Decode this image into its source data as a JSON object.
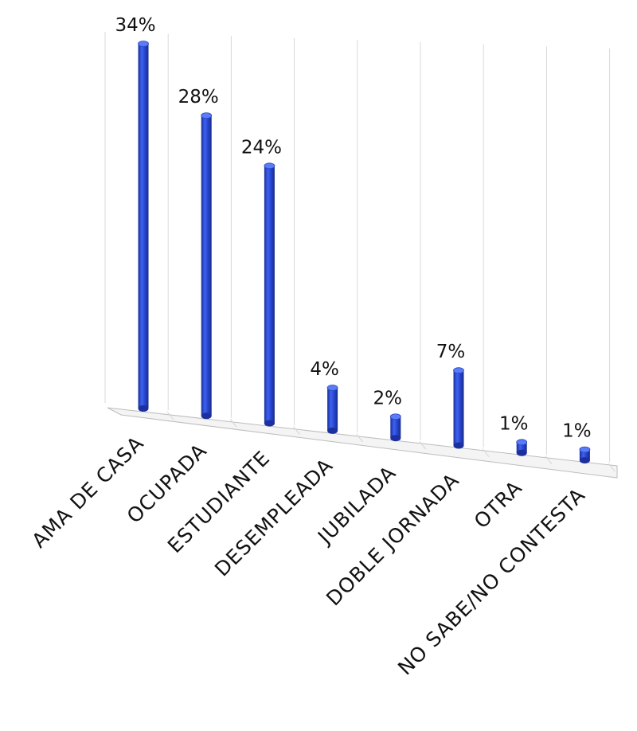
{
  "chart_data": {
    "type": "bar",
    "categories": [
      "AMA DE CASA",
      "OCUPADA",
      "ESTUDIANTE",
      "DESEMPLEADA",
      "JUBILADA",
      "DOBLE JORNADA",
      "OTRA",
      "NO SABE/NO CONTESTA"
    ],
    "values": [
      34,
      28,
      24,
      4,
      2,
      7,
      1,
      1
    ],
    "value_labels": [
      "34%",
      "28%",
      "24%",
      "4%",
      "2%",
      "7%",
      "1%",
      "1%"
    ],
    "unit": "%",
    "ylim": [
      0,
      34
    ],
    "grid": true,
    "legend": "none",
    "style": "3d-cylinder",
    "bar_color": "#2f4fd8"
  }
}
